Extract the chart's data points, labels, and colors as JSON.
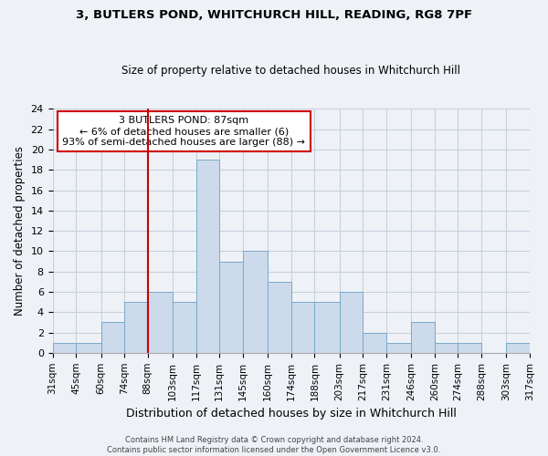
{
  "title": "3, BUTLERS POND, WHITCHURCH HILL, READING, RG8 7PF",
  "subtitle": "Size of property relative to detached houses in Whitchurch Hill",
  "xlabel": "Distribution of detached houses by size in Whitchurch Hill",
  "ylabel": "Number of detached properties",
  "bin_edges": [
    31,
    45,
    60,
    74,
    88,
    103,
    117,
    131,
    145,
    160,
    174,
    188,
    203,
    217,
    231,
    246,
    260,
    274,
    288,
    303,
    317
  ],
  "bin_heights": [
    1,
    1,
    3,
    5,
    6,
    5,
    19,
    9,
    10,
    7,
    5,
    5,
    6,
    2,
    1,
    3,
    1,
    1,
    0,
    1
  ],
  "tick_labels": [
    "31sqm",
    "45sqm",
    "60sqm",
    "74sqm",
    "88sqm",
    "103sqm",
    "117sqm",
    "131sqm",
    "145sqm",
    "160sqm",
    "174sqm",
    "188sqm",
    "203sqm",
    "217sqm",
    "231sqm",
    "246sqm",
    "260sqm",
    "274sqm",
    "288sqm",
    "303sqm",
    "317sqm"
  ],
  "bar_facecolor": "#ccdaeb",
  "bar_edgecolor": "#7aaac8",
  "vline_x": 88,
  "vline_color": "#cc0000",
  "annotation_lines": [
    "3 BUTLERS POND: 87sqm",
    "← 6% of detached houses are smaller (6)",
    "93% of semi-detached houses are larger (88) →"
  ],
  "annotation_box_edgecolor": "#cc0000",
  "annotation_box_facecolor": "#ffffff",
  "ylim": [
    0,
    24
  ],
  "yticks": [
    0,
    2,
    4,
    6,
    8,
    10,
    12,
    14,
    16,
    18,
    20,
    22,
    24
  ],
  "grid_color": "#c8d0dc",
  "bg_color": "#eef2f7",
  "footer1": "Contains HM Land Registry data © Crown copyright and database right 2024.",
  "footer2": "Contains public sector information licensed under the Open Government Licence v3.0."
}
